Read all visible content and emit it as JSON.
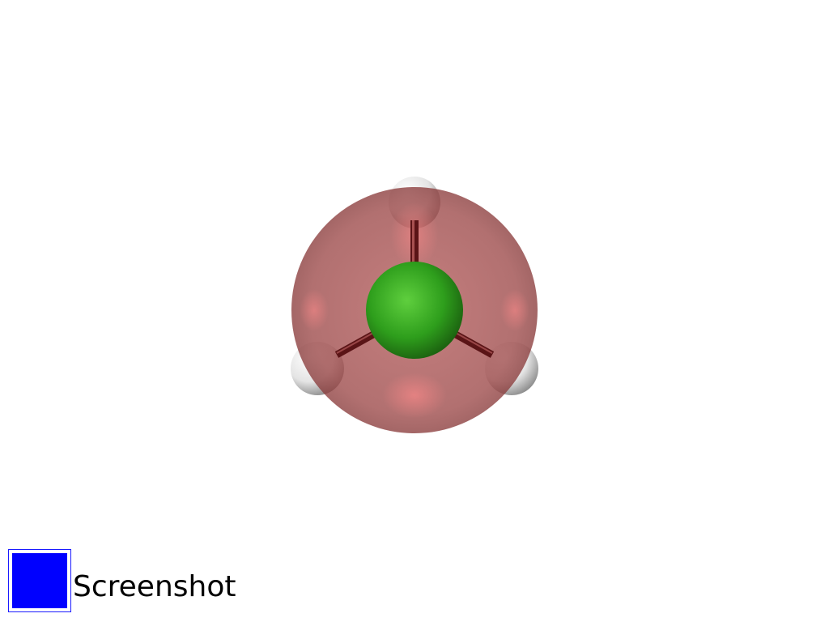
{
  "controls": {
    "screenshot_label": "Screenshot",
    "screenshot_button_color": "#0000ff"
  },
  "molecule": {
    "central_atom_color": "#2e9e1c",
    "substituent_atom_color": "#ffffff",
    "bond_color": "#5a1416",
    "surface_color": "#a03c3c",
    "surface_opacity": 0.6
  }
}
